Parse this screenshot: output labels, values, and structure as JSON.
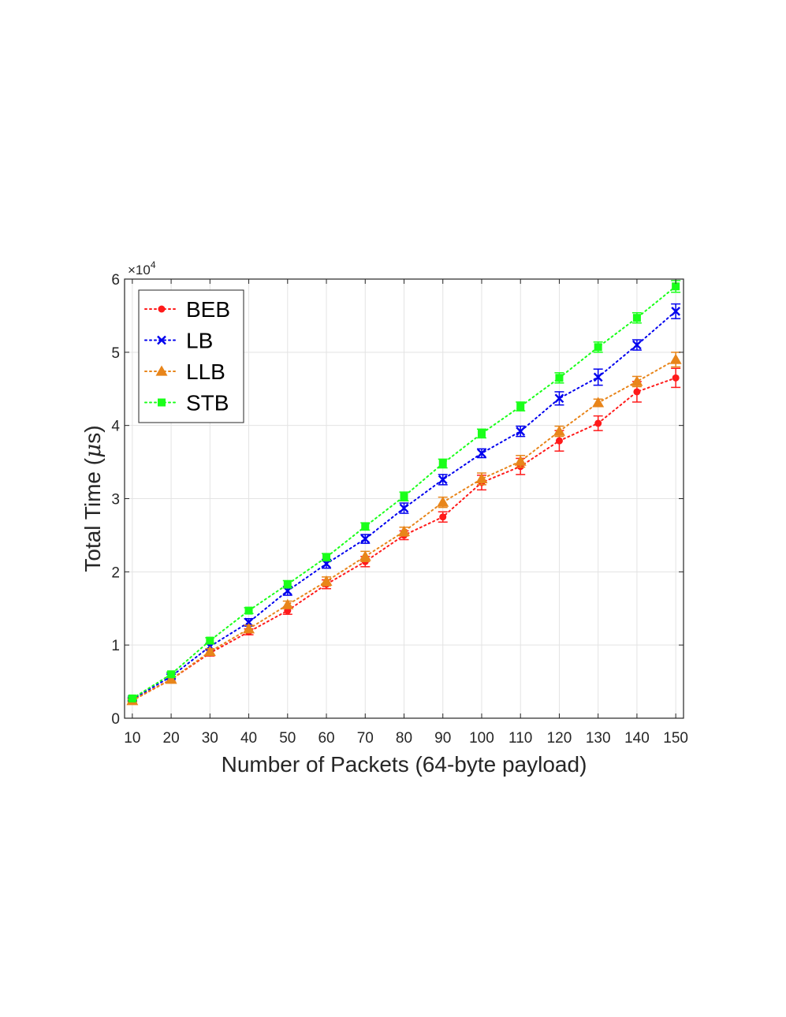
{
  "chart_data": {
    "type": "line",
    "xlabel": "Number of Packets (64-byte payload)",
    "ylabel_prefix": "Total Time (",
    "ylabel_mu": "μ",
    "ylabel_suffix": "s)",
    "y_multiplier_base": "×10",
    "y_multiplier_exp": "4",
    "x": [
      10,
      20,
      30,
      40,
      50,
      60,
      70,
      80,
      90,
      100,
      110,
      120,
      130,
      140,
      150
    ],
    "xlim": [
      8,
      152
    ],
    "ylim": [
      0,
      6
    ],
    "x_ticks": [
      "10",
      "20",
      "30",
      "40",
      "50",
      "60",
      "70",
      "80",
      "90",
      "100",
      "110",
      "120",
      "130",
      "140",
      "150"
    ],
    "y_ticks": [
      "0",
      "1",
      "2",
      "3",
      "4",
      "5",
      "6"
    ],
    "grid": true,
    "legend_position": "top-left",
    "series": [
      {
        "name": "BEB",
        "color": "#ff1a1a",
        "marker": "circle",
        "values": [
          0.25,
          0.53,
          0.89,
          1.18,
          1.47,
          1.83,
          2.14,
          2.5,
          2.75,
          3.22,
          3.44,
          3.79,
          4.03,
          4.46,
          4.65
        ],
        "err": [
          0.02,
          0.03,
          0.04,
          0.04,
          0.05,
          0.06,
          0.07,
          0.06,
          0.07,
          0.1,
          0.11,
          0.14,
          0.1,
          0.14,
          0.13
        ]
      },
      {
        "name": "LB",
        "color": "#0000ee",
        "marker": "x",
        "values": [
          0.26,
          0.57,
          0.98,
          1.31,
          1.74,
          2.11,
          2.45,
          2.87,
          3.26,
          3.62,
          3.92,
          4.37,
          4.66,
          5.1,
          5.56
        ],
        "err": [
          0.02,
          0.03,
          0.04,
          0.05,
          0.06,
          0.06,
          0.06,
          0.07,
          0.07,
          0.06,
          0.07,
          0.09,
          0.11,
          0.07,
          0.1
        ]
      },
      {
        "name": "LLB",
        "color": "#e8851a",
        "marker": "triangle",
        "values": [
          0.24,
          0.53,
          0.91,
          1.22,
          1.55,
          1.87,
          2.21,
          2.55,
          2.95,
          3.27,
          3.51,
          3.92,
          4.31,
          4.6,
          4.9
        ],
        "err": [
          0.02,
          0.03,
          0.04,
          0.05,
          0.05,
          0.06,
          0.07,
          0.06,
          0.07,
          0.08,
          0.08,
          0.07,
          0.05,
          0.07,
          0.1
        ]
      },
      {
        "name": "STB",
        "color": "#1aff1a",
        "marker": "square",
        "values": [
          0.27,
          0.6,
          1.06,
          1.47,
          1.83,
          2.2,
          2.62,
          3.03,
          3.48,
          3.89,
          4.26,
          4.65,
          5.07,
          5.47,
          5.9
        ],
        "err": [
          0.02,
          0.03,
          0.04,
          0.04,
          0.05,
          0.05,
          0.05,
          0.06,
          0.06,
          0.06,
          0.06,
          0.07,
          0.07,
          0.07,
          0.08
        ]
      }
    ]
  }
}
